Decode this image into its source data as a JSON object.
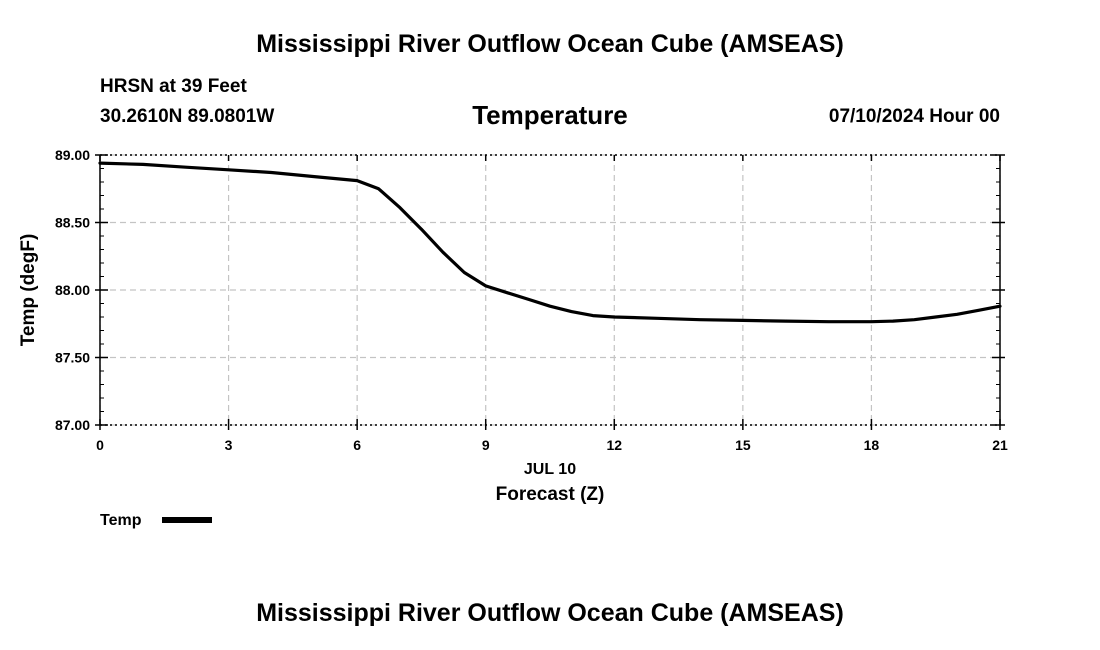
{
  "header": {
    "title": "Mississippi River Outflow Ocean Cube (AMSEAS)",
    "station": "HRSN at 39 Feet",
    "coords": "30.2610N  89.0801W",
    "datetime": "07/10/2024 Hour 00"
  },
  "footer": {
    "title": "Mississippi River Outflow Ocean Cube (AMSEAS)"
  },
  "chart_data": {
    "type": "line",
    "title": "Temperature",
    "xlabel": "Forecast (Z)",
    "xsublabel": "JUL 10",
    "ylabel": "Temp (degF)",
    "xlim": [
      0,
      21
    ],
    "ylim": [
      87.0,
      89.0
    ],
    "xticks": [
      0,
      3,
      6,
      9,
      12,
      15,
      18,
      21
    ],
    "yticks": [
      "87.00",
      "87.50",
      "88.00",
      "88.50",
      "89.00"
    ],
    "grid": true,
    "legend_position": "bottom-left",
    "series": [
      {
        "name": "Temp",
        "color": "#000000",
        "x": [
          0,
          1,
          2,
          3,
          4,
          5,
          6,
          6.5,
          7,
          7.5,
          8,
          8.5,
          9,
          9.5,
          10,
          10.5,
          11,
          11.5,
          12,
          13,
          14,
          15,
          16,
          17,
          18,
          18.5,
          19,
          19.5,
          20,
          20.5,
          21
        ],
        "y": [
          88.94,
          88.93,
          88.91,
          88.89,
          88.87,
          88.84,
          88.81,
          88.75,
          88.61,
          88.45,
          88.28,
          88.13,
          88.03,
          87.98,
          87.93,
          87.88,
          87.84,
          87.81,
          87.8,
          87.79,
          87.78,
          87.775,
          87.77,
          87.765,
          87.765,
          87.77,
          87.78,
          87.8,
          87.82,
          87.85,
          87.88
        ]
      }
    ]
  }
}
